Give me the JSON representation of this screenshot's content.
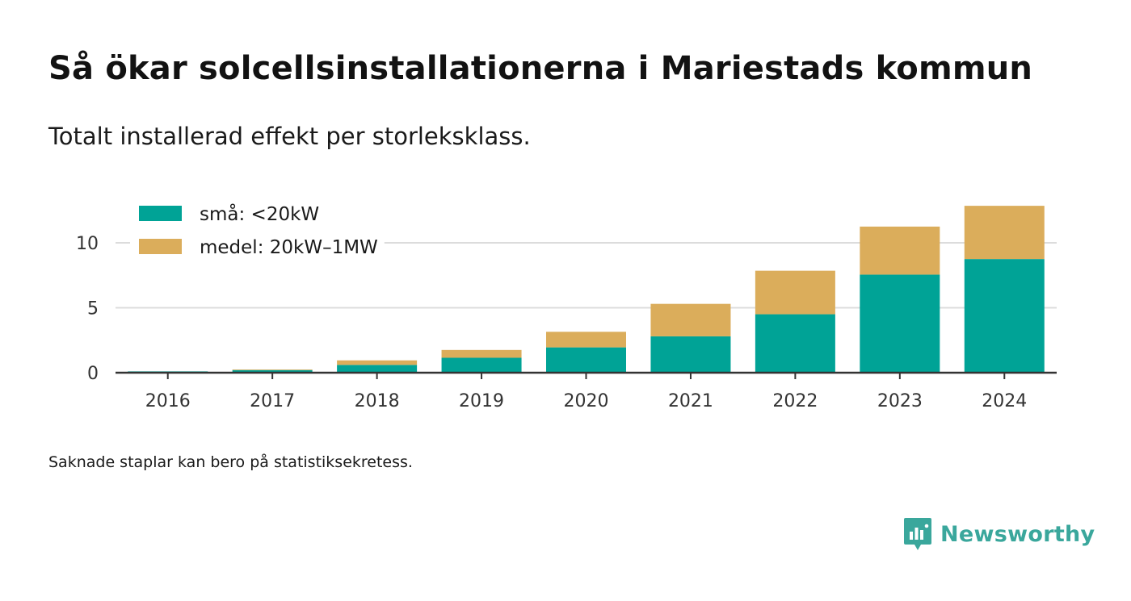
{
  "title": "Så ökar solcellsinstallationerna i Mariestads kommun",
  "subtitle": "Totalt installerad effekt per storleksklass.",
  "note": "Saknade staplar kan bero på statistiksekretess.",
  "brand": {
    "name": "Newsworthy",
    "icon": "newsworthy-logo-icon",
    "color": "#3aa79c"
  },
  "chart_data": {
    "type": "bar",
    "stacked": true,
    "categories": [
      "2016",
      "2017",
      "2018",
      "2019",
      "2020",
      "2021",
      "2022",
      "2023",
      "2024"
    ],
    "series": [
      {
        "name": "små: <20kW",
        "color": "#00a396",
        "values": [
          0.1,
          0.2,
          0.6,
          1.15,
          1.95,
          2.8,
          4.5,
          7.55,
          8.75
        ]
      },
      {
        "name": "medel: 20kW–1MW",
        "color": "#dbad5b",
        "values": [
          0.0,
          0.05,
          0.35,
          0.6,
          1.2,
          2.5,
          3.35,
          3.7,
          4.1
        ]
      }
    ],
    "y_ticks": [
      0,
      5,
      10
    ],
    "ylim": [
      0,
      13
    ],
    "grid": true,
    "legend_position": "top-left"
  }
}
